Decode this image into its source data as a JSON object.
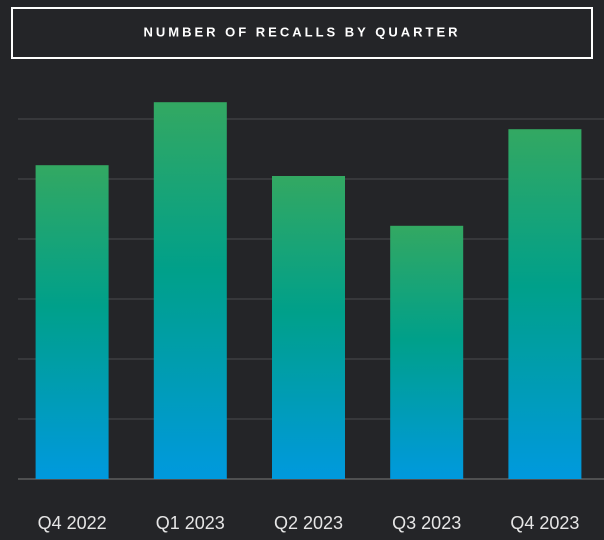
{
  "chart_data": {
    "type": "bar",
    "title": "NUMBER OF RECALLS BY QUARTER",
    "categories": [
      "Q4 2022",
      "Q1 2023",
      "Q2 2023",
      "Q3 2023",
      "Q4 2023"
    ],
    "values": [
      5.23,
      6.28,
      5.05,
      4.22,
      5.83
    ],
    "gradient": [
      "#33a862",
      "#00a08a",
      "#0099de"
    ],
    "ylim": [
      0,
      7
    ],
    "yticks": [
      0,
      1,
      2,
      3,
      4,
      5,
      6
    ],
    "grid": true
  }
}
